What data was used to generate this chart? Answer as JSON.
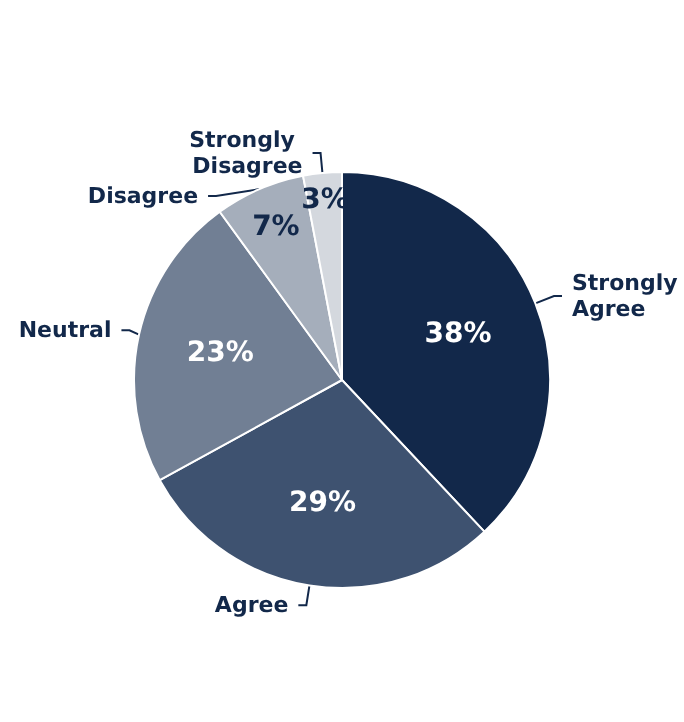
{
  "chart_data": {
    "type": "pie",
    "categories": [
      "Strongly Agree",
      "Agree",
      "Neutral",
      "Disagree",
      "Strongly Disagree"
    ],
    "values": [
      38,
      29,
      23,
      7,
      3
    ],
    "value_labels": [
      "38%",
      "29%",
      "23%",
      "7%",
      "3%"
    ],
    "colors": [
      "#12284a",
      "#3e5270",
      "#717f94",
      "#a5aebb",
      "#d4d8de"
    ]
  }
}
